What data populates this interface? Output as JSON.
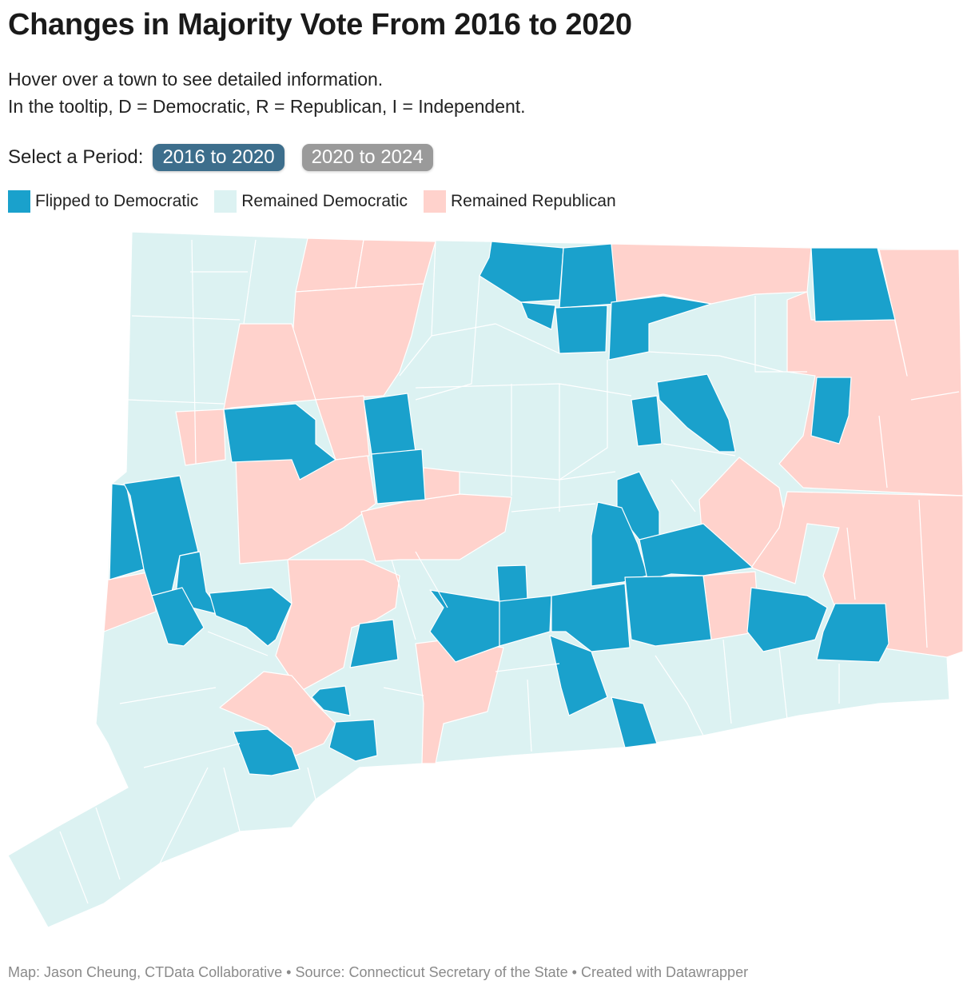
{
  "title": "Changes in Majority Vote From 2016 to 2020",
  "description": {
    "line1": "Hover over a town to see detailed information.",
    "line2": "In the tooltip, D = Democratic, R = Republican, I = Independent."
  },
  "period_selector": {
    "label": "Select a Period:",
    "options": [
      {
        "label": "2016 to 2020",
        "active": true
      },
      {
        "label": "2020 to 2024",
        "active": false
      }
    ]
  },
  "legend": [
    {
      "label": "Flipped to Democratic",
      "color": "#1aa1cc"
    },
    {
      "label": "Remained Democratic",
      "color": "#dcf2f2"
    },
    {
      "label": "Remained Republican",
      "color": "#ffd2cc"
    }
  ],
  "colors": {
    "flipped_dem": "#1aa1cc",
    "remained_dem": "#dcf2f2",
    "remained_rep": "#ffd2cc",
    "border": "#ffffff"
  },
  "footer": "Map: Jason Cheung, CTData Collaborative • Source: Connecticut Secretary of the State • Created with Datawrapper"
}
